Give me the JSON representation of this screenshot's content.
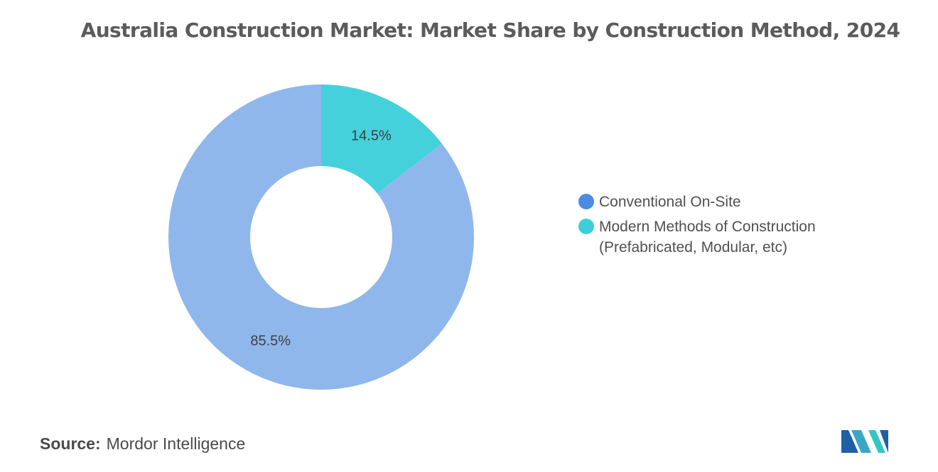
{
  "title": "Australia Construction Market: Market Share by Construction Method, 2024",
  "chart_data": {
    "type": "pie",
    "donut": true,
    "title": "Australia Construction Market: Market Share by Construction Method, 2024",
    "slices": [
      {
        "label": "Modern Methods of Construction (Prefabricated, Modular, etc)",
        "value": 14.5,
        "value_label": "14.5%",
        "color": "#45d1db"
      },
      {
        "label": "Conventional On-Site",
        "value": 85.5,
        "value_label": "85.5%",
        "color": "#8fb7ec"
      }
    ],
    "legend_position": "right"
  },
  "legend": [
    {
      "label": "Conventional On-Site",
      "color": "#4a8be3"
    },
    {
      "label": "Modern Methods of Construction (Prefabricated, Modular, etc)",
      "color": "#3ccfd9"
    }
  ],
  "source": {
    "key": "Source:",
    "value": "Mordor Intelligence"
  },
  "logo": {
    "icon": "mordor-intelligence-logo-icon"
  }
}
